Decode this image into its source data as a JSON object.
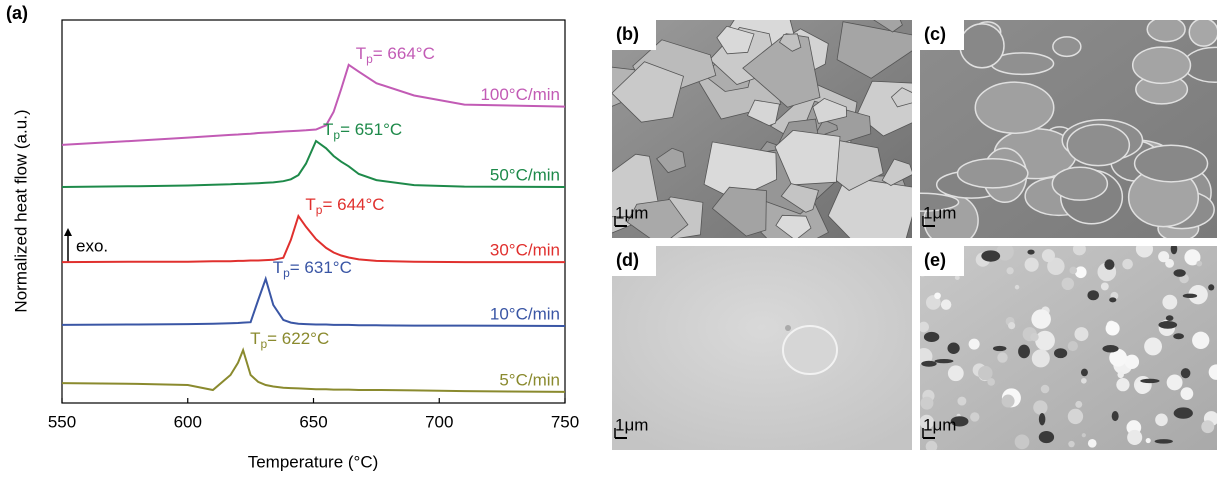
{
  "chart_data": {
    "type": "line",
    "panel_label": "(a)",
    "xlabel": "Temperature (°C)",
    "ylabel": "Normalized heat flow (a.u.)",
    "annotation": "exo.",
    "x": [
      550,
      580,
      600,
      610,
      617,
      620,
      622,
      625,
      628,
      631,
      634,
      638,
      641,
      644,
      647,
      651,
      655,
      658,
      661,
      664,
      668,
      675,
      690,
      710,
      750
    ],
    "xlim": [
      550,
      750
    ],
    "xticks": [
      550,
      600,
      650,
      700,
      750
    ],
    "ylim": [
      0,
      100
    ],
    "series": [
      {
        "name": "100°C/min",
        "color": "#c25bb5",
        "peak_label": {
          "symbol": "T",
          "subscript": "p",
          "text": "= 664°C"
        },
        "values": [
          67.4,
          68.5,
          69.3,
          69.7,
          70.0,
          70.1,
          70.2,
          70.3,
          70.5,
          70.6,
          70.7,
          70.9,
          71.0,
          71.1,
          71.2,
          71.4,
          72.5,
          76.0,
          82.0,
          88.3,
          86.5,
          83.5,
          80.3,
          77.9,
          77.4
        ]
      },
      {
        "name": "50°C/min",
        "color": "#1e8a4a",
        "peak_label": {
          "symbol": "T",
          "subscript": "p",
          "text": "= 651°C"
        },
        "values": [
          56.4,
          56.6,
          56.8,
          57.0,
          57.1,
          57.2,
          57.2,
          57.3,
          57.4,
          57.5,
          57.6,
          57.9,
          58.4,
          59.5,
          62.5,
          68.4,
          66.5,
          64.5,
          63.0,
          61.8,
          59.8,
          58.2,
          56.9,
          56.5,
          56.4
        ]
      },
      {
        "name": "30°C/min",
        "color": "#e0302e",
        "peak_label": {
          "symbol": "T",
          "subscript": "p",
          "text": "= 644°C"
        },
        "values": [
          36.8,
          36.9,
          36.9,
          37.0,
          37.0,
          37.1,
          37.1,
          37.2,
          37.2,
          37.3,
          37.4,
          37.9,
          42.6,
          48.8,
          46.0,
          42.8,
          40.5,
          39.3,
          38.5,
          38.0,
          37.5,
          37.1,
          36.9,
          36.8,
          36.8
        ]
      },
      {
        "name": "10°C/min",
        "color": "#3a56a5",
        "peak_label": {
          "symbol": "T",
          "subscript": "p",
          "text": "= 631°C"
        },
        "values": [
          20.4,
          20.5,
          20.6,
          20.7,
          20.8,
          20.9,
          21.0,
          21.1,
          26.9,
          32.4,
          25.6,
          21.7,
          21.0,
          20.7,
          20.6,
          20.5,
          20.5,
          20.4,
          20.4,
          20.4,
          20.3,
          20.3,
          20.2,
          20.2,
          20.1
        ]
      },
      {
        "name": "5°C/min",
        "color": "#8a8a2e",
        "peak_label": {
          "symbol": "T",
          "subscript": "p",
          "text": "= 622°C"
        },
        "values": [
          5.2,
          5.0,
          4.7,
          3.4,
          7.3,
          10.5,
          13.8,
          7.3,
          5.5,
          4.7,
          4.3,
          4.0,
          3.9,
          3.8,
          3.7,
          3.6,
          3.6,
          3.5,
          3.5,
          3.5,
          3.4,
          3.4,
          3.3,
          3.1,
          2.9
        ]
      }
    ]
  },
  "images": [
    {
      "label": "(b)",
      "scale_bar": "1μm"
    },
    {
      "label": "(c)",
      "scale_bar": "1μm"
    },
    {
      "label": "(d)",
      "scale_bar": "1μm"
    },
    {
      "label": "(e)",
      "scale_bar": "1μm"
    }
  ]
}
